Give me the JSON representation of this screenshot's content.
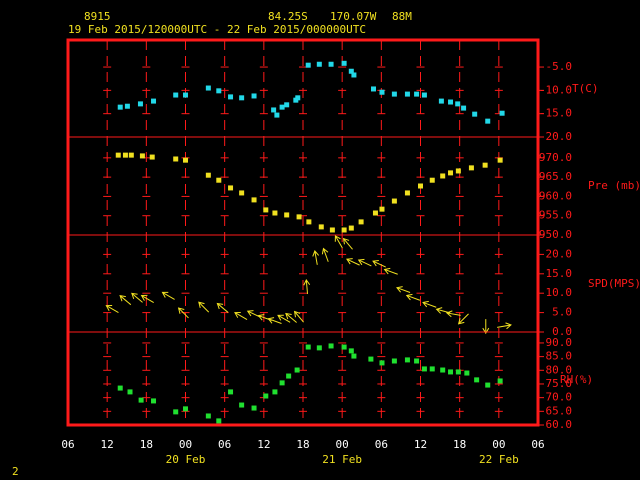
{
  "header": {
    "station": "8915",
    "lat": "84.25S",
    "lon": "170.07W",
    "elev": "88M",
    "period": "19 Feb 2015/120000UTC - 22 Feb 2015/000000UTC",
    "footer": "2"
  },
  "chart_data": [
    {
      "type": "scatter",
      "ylabel": "T(C)",
      "color": "#22d8e8",
      "ylim": [
        -20,
        0.8
      ],
      "yticks": [
        {
          "value": -20,
          "label": "-20.0"
        },
        {
          "value": -15,
          "label": "-15.0"
        },
        {
          "value": -10,
          "label": "-10.0"
        },
        {
          "value": -5,
          "label": "-5.0"
        }
      ],
      "x": [
        14,
        15.1,
        17.1,
        19.1,
        22.5,
        24,
        27.5,
        29.1,
        30.9,
        32.6,
        34.5,
        37.5,
        38,
        38.8,
        39.5,
        40.9,
        41.2,
        42.8,
        44.5,
        46.3,
        48.3,
        49.4,
        49.8,
        52.8,
        54.1,
        56,
        58,
        59.4,
        60.6,
        63.2,
        64.6,
        65.7,
        66.6,
        68.3,
        70.3,
        72.5
      ],
      "values": [
        -13.6,
        -13.4,
        -12.9,
        -12.3,
        -11,
        -11,
        -9.5,
        -10.1,
        -11.4,
        -11.6,
        -11.2,
        -14.2,
        -15.3,
        -13.6,
        -13.1,
        -12.1,
        -11.6,
        -4.6,
        -4.4,
        -4.4,
        -4.2,
        -5.9,
        -6.7,
        -9.7,
        -10.4,
        -10.8,
        -10.8,
        -10.8,
        -11,
        -12.3,
        -12.5,
        -12.9,
        -13.8,
        -15.1,
        -16.6,
        -14.9
      ]
    },
    {
      "type": "scatter",
      "ylabel": "Pre (mb)",
      "color": "#f0e020",
      "ylim": [
        950,
        975.4
      ],
      "yticks": [
        {
          "value": 950,
          "label": "950.0"
        },
        {
          "value": 955,
          "label": "955.0"
        },
        {
          "value": 960,
          "label": "960.0"
        },
        {
          "value": 965,
          "label": "965.0"
        },
        {
          "value": 970,
          "label": "970.0"
        }
      ],
      "x": [
        13.7,
        14.8,
        15.7,
        17.4,
        18.9,
        22.5,
        24,
        27.5,
        29.1,
        30.9,
        32.6,
        34.5,
        36.3,
        37.7,
        39.5,
        41.4,
        42.9,
        44.8,
        46.5,
        48.3,
        49.4,
        50.9,
        53.1,
        54.1,
        56,
        58,
        60,
        61.8,
        63.4,
        64.6,
        65.8,
        67.8,
        69.9,
        72.2
      ],
      "values": [
        970.7,
        970.7,
        970.7,
        970.5,
        970.2,
        969.7,
        969.4,
        965.5,
        964.2,
        962.2,
        960.9,
        959.1,
        956.5,
        955.7,
        955.2,
        954.7,
        953.4,
        952.1,
        951.3,
        951.3,
        951.8,
        953.4,
        955.7,
        956.7,
        958.8,
        960.9,
        962.7,
        964.2,
        965.3,
        966.1,
        966.6,
        967.4,
        968.1,
        969.4
      ]
    },
    {
      "type": "arrows",
      "ylabel": "SPD(MPS)",
      "color": "#f0e020",
      "ylim": [
        0,
        25
      ],
      "yticks": [
        {
          "value": 0,
          "label": "0.0"
        },
        {
          "value": 5,
          "label": "5.0"
        },
        {
          "value": 10,
          "label": "10.0"
        },
        {
          "value": 15,
          "label": "15.0"
        },
        {
          "value": 20,
          "label": "20.0"
        }
      ],
      "x": [
        12.8,
        14.8,
        16.6,
        18.2,
        21.4,
        23.7,
        26.8,
        29.7,
        32.5,
        34.5,
        36.2,
        37.7,
        39.1,
        40.2,
        41.4,
        42.6,
        44,
        45.5,
        47.5,
        48.9,
        49.7,
        51.5,
        53.7,
        55.5,
        57.4,
        58.9,
        61.4,
        63.5,
        65.1,
        66.6,
        70,
        72.8
      ],
      "values": [
        5.9,
        8.2,
        8.8,
        8.5,
        9.3,
        4.9,
        6.4,
        6.2,
        4.1,
        4.6,
        3.6,
        2.8,
        3.4,
        3.6,
        3.9,
        11.6,
        19.1,
        19.8,
        23.2,
        22.7,
        18,
        17.8,
        17.5,
        15.5,
        10.8,
        8.8,
        7,
        5.4,
        4.6,
        3.4,
        1.5,
        1.5
      ],
      "direction": [
        300,
        310,
        310,
        300,
        300,
        315,
        315,
        310,
        300,
        295,
        290,
        290,
        300,
        310,
        320,
        355,
        350,
        340,
        330,
        320,
        295,
        295,
        295,
        290,
        290,
        290,
        290,
        285,
        280,
        225,
        180,
        80
      ]
    },
    {
      "type": "scatter",
      "ylabel": "RH(%)",
      "color": "#20e030",
      "ylim": [
        60,
        94
      ],
      "yticks": [
        {
          "value": 60,
          "label": "60.0"
        },
        {
          "value": 65,
          "label": "65.0"
        },
        {
          "value": 70,
          "label": "70.0"
        },
        {
          "value": 75,
          "label": "75.0"
        },
        {
          "value": 80,
          "label": "80.0"
        },
        {
          "value": 85,
          "label": "85.0"
        },
        {
          "value": 90,
          "label": "90.0"
        }
      ],
      "x": [
        14,
        15.5,
        17.2,
        19.1,
        22.5,
        24,
        27.5,
        29.1,
        30.9,
        32.6,
        34.5,
        36.3,
        37.7,
        38.8,
        39.8,
        41.1,
        42.8,
        44.5,
        46.3,
        48.3,
        49.4,
        49.8,
        52.4,
        54.1,
        56,
        58,
        59.4,
        60.6,
        61.8,
        63.4,
        64.6,
        65.8,
        67.1,
        68.6,
        70.3,
        72.2
      ],
      "values": [
        73.5,
        72.1,
        69.1,
        68.8,
        64.8,
        65.9,
        63.3,
        61.5,
        72.1,
        67.3,
        66.2,
        70.6,
        72.1,
        75.4,
        77.9,
        80.1,
        88.5,
        88.2,
        88.9,
        88.5,
        87.1,
        85.2,
        84.1,
        82.7,
        83.4,
        83.8,
        83.4,
        80.5,
        80.5,
        80.1,
        79.4,
        79.4,
        79,
        76.5,
        74.6,
        76.1
      ],
      "xlim": [
        6,
        78
      ],
      "xticks": [
        {
          "value": 6,
          "label": "06"
        },
        {
          "value": 12,
          "label": "12"
        },
        {
          "value": 18,
          "label": "18"
        },
        {
          "value": 24,
          "label": "00"
        },
        {
          "value": 30,
          "label": "06"
        },
        {
          "value": 36,
          "label": "12"
        },
        {
          "value": 42,
          "label": "18"
        },
        {
          "value": 48,
          "label": "00"
        },
        {
          "value": 54,
          "label": "06"
        },
        {
          "value": 60,
          "label": "12"
        },
        {
          "value": 66,
          "label": "18"
        },
        {
          "value": 72,
          "label": "00"
        },
        {
          "value": 78,
          "label": "06"
        }
      ],
      "date_labels": [
        {
          "value": 24,
          "label": "20 Feb"
        },
        {
          "value": 48,
          "label": "21 Feb"
        },
        {
          "value": 72,
          "label": "22 Feb"
        }
      ]
    }
  ]
}
